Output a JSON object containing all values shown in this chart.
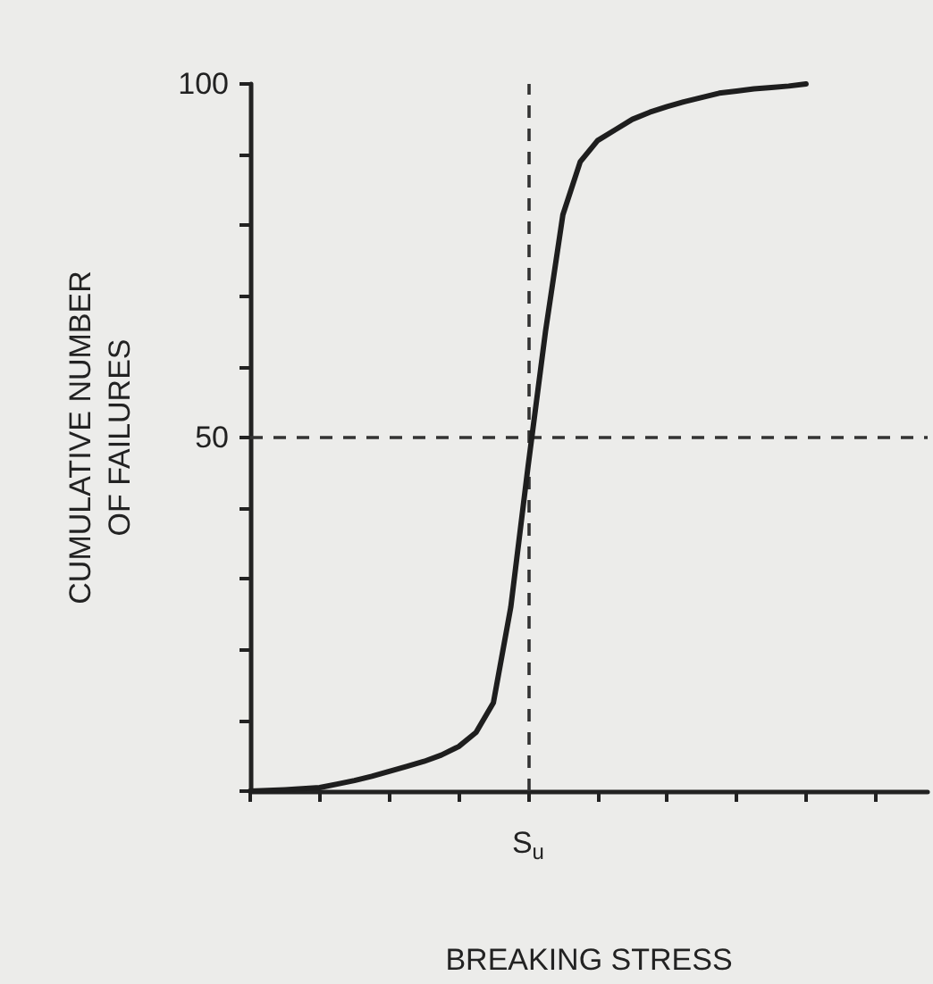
{
  "chart_data": {
    "type": "line",
    "xlabel": "BREAKING STRESS",
    "ylabel": "CUMULATIVE NUMBER OF FAILURES",
    "categories": [
      null,
      null,
      null,
      null,
      null,
      null,
      null,
      null,
      null,
      null,
      null,
      null,
      null,
      null,
      null,
      null,
      "S$_{u}$",
      null,
      null,
      null,
      null,
      null,
      null,
      null,
      null,
      null,
      null,
      null,
      null,
      null,
      null,
      null,
      null,
      null,
      null,
      null,
      null,
      null,
      null,
      null
    ],
    "ylim": [
      0,
      100
    ],
    "yticks": [
      50,
      100
    ],
    "grid": false,
    "marker": "none",
    "line_style": "solid",
    "series": [
      {
        "color": "#1e1e1e",
        "values": [
          0,
          0.1,
          0.2,
          0.35,
          0.5,
          1,
          1.5,
          2.1,
          2.8,
          3.5,
          4.2,
          5.1,
          6.3,
          8.3,
          12.5,
          26,
          46,
          65,
          81.5,
          89,
          92,
          93.5,
          95,
          96,
          96.8,
          97.5,
          98.1,
          98.7,
          99,
          99.3,
          99.5,
          99.7,
          100,
          null,
          null,
          null,
          null,
          null,
          null,
          null
        ]
      }
    ],
    "ref_lines": [
      {
        "axis": "y",
        "value": 50,
        "color": "#333333",
        "line_style": "dashed"
      },
      {
        "axis": "x",
        "value": "S$_{u}$",
        "color": "#333333",
        "line_style": "dashed"
      }
    ]
  }
}
